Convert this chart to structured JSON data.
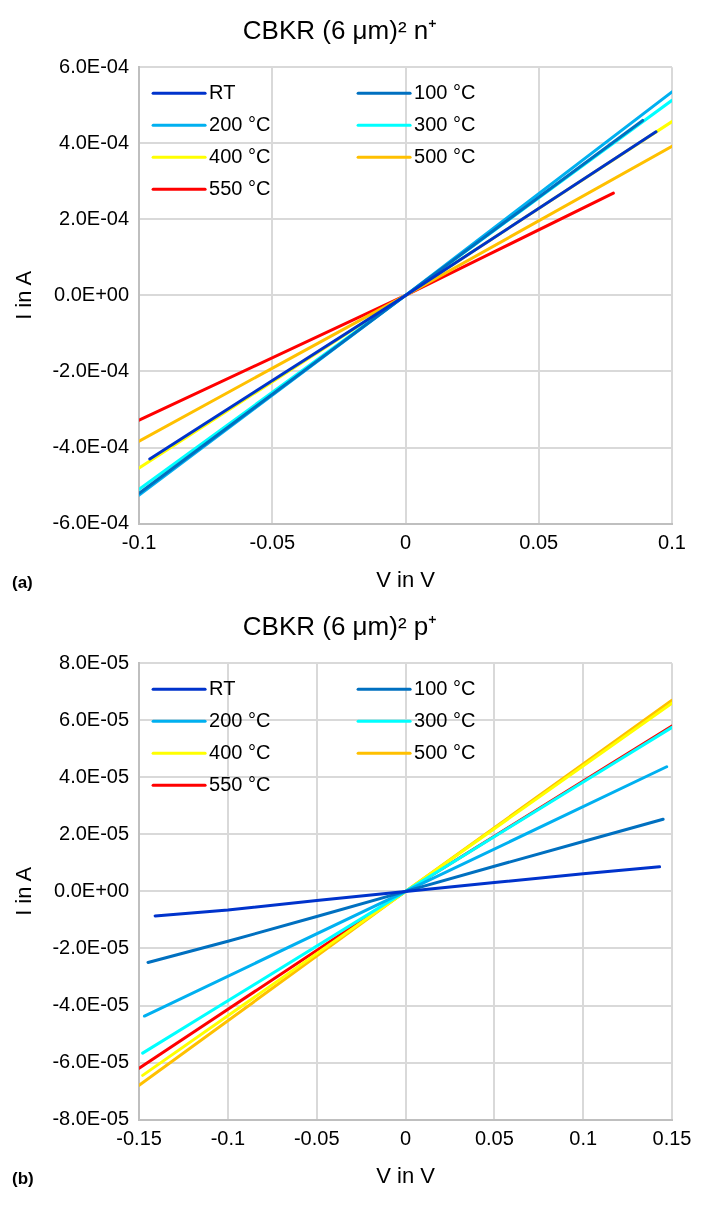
{
  "chart_data": [
    {
      "type": "line",
      "title": "CBKR (6 μm)² n⁺",
      "xlabel": "V in V",
      "ylabel": "I in A",
      "annotations": [
        "(a)"
      ],
      "xlim": [
        -0.1,
        0.1
      ],
      "xticks": [
        -0.1,
        -0.05,
        0,
        0.05,
        0.1
      ],
      "ylim": [
        -0.0006,
        0.0006
      ],
      "yticks": [
        {
          "value": -0.0006,
          "label": "-6.0E-04"
        },
        {
          "value": -0.0004,
          "label": "-4.0E-04"
        },
        {
          "value": -0.0002,
          "label": "-2.0E-04"
        },
        {
          "value": 0,
          "label": "0.0E+00"
        },
        {
          "value": 0.0002,
          "label": "2.0E-04"
        },
        {
          "value": 0.0004,
          "label": "4.0E-04"
        },
        {
          "value": 0.0006,
          "label": "6.0E-04"
        }
      ],
      "grid": true,
      "legend": "top left",
      "marker": "none",
      "line_style": "solid",
      "series": [
        {
          "name": "RT",
          "color": "#0033cc",
          "x": [
            -0.096,
            0,
            0.094
          ],
          "values": [
            -0.00043,
            0,
            0.00043
          ]
        },
        {
          "name": "100 °C",
          "color": "#0070c0",
          "x": [
            -0.1,
            0,
            0.089
          ],
          "values": [
            -0.00052,
            0,
            0.00046
          ]
        },
        {
          "name": "200 °C",
          "color": "#00b0f0",
          "x": [
            -0.1,
            0,
            0.1
          ],
          "values": [
            -0.000525,
            0,
            0.000535
          ]
        },
        {
          "name": "300 °C",
          "color": "#00ffff",
          "x": [
            -0.1,
            0,
            0.1
          ],
          "values": [
            -0.00051,
            0,
            0.000513
          ]
        },
        {
          "name": "400 °C",
          "color": "#ffff00",
          "x": [
            -0.1,
            0,
            0.1
          ],
          "values": [
            -0.000454,
            0,
            0.000457
          ]
        },
        {
          "name": "500 °C",
          "color": "#ffc000",
          "x": [
            -0.1,
            0,
            0.1
          ],
          "values": [
            -0.000383,
            0,
            0.000392
          ]
        },
        {
          "name": "550 °C",
          "color": "#ff0000",
          "x": [
            -0.1,
            0,
            0.078
          ],
          "values": [
            -0.000328,
            0,
            0.000269
          ]
        }
      ]
    },
    {
      "type": "line",
      "title": "CBKR (6 μm)² p⁺",
      "xlabel": "V in V",
      "ylabel": "I in A",
      "annotations": [
        "(b)"
      ],
      "xlim": [
        -0.15,
        0.15
      ],
      "xticks": [
        -0.15,
        -0.1,
        -0.05,
        0,
        0.05,
        0.1,
        0.15
      ],
      "ylim": [
        -8e-05,
        8e-05
      ],
      "yticks": [
        {
          "value": -8e-05,
          "label": "-8.0E-05"
        },
        {
          "value": -6e-05,
          "label": "-6.0E-05"
        },
        {
          "value": -4e-05,
          "label": "-4.0E-05"
        },
        {
          "value": -2e-05,
          "label": "-2.0E-05"
        },
        {
          "value": 0,
          "label": "0.0E+00"
        },
        {
          "value": 2e-05,
          "label": "2.0E-05"
        },
        {
          "value": 4e-05,
          "label": "4.0E-05"
        },
        {
          "value": 6e-05,
          "label": "6.0E-05"
        },
        {
          "value": 8e-05,
          "label": "8.0E-05"
        }
      ],
      "grid": true,
      "legend": "top left",
      "marker": "none",
      "line_style": "solid",
      "series": [
        {
          "name": "RT",
          "color": "#0033cc",
          "x": [
            -0.141,
            -0.1,
            -0.05,
            0,
            0.05,
            0.1,
            0.143
          ],
          "values": [
            -8.6e-06,
            -6.5e-06,
            -3.2e-06,
            0,
            3.1e-06,
            6.2e-06,
            8.6e-06
          ]
        },
        {
          "name": "100 °C",
          "color": "#0070c0",
          "x": [
            -0.145,
            -0.1,
            -0.05,
            0,
            0.05,
            0.1,
            0.145
          ],
          "values": [
            -2.49e-05,
            -1.75e-05,
            -8.8e-06,
            0,
            8.8e-06,
            1.75e-05,
            2.53e-05
          ]
        },
        {
          "name": "200 °C",
          "color": "#00b0f0",
          "x": [
            -0.147,
            0,
            0.147
          ],
          "values": [
            -4.37e-05,
            0,
            4.37e-05
          ]
        },
        {
          "name": "300 °C",
          "color": "#00ffff",
          "x": [
            -0.148,
            0,
            0.15
          ],
          "values": [
            -5.67e-05,
            0,
            5.75e-05
          ]
        },
        {
          "name": "400 °C",
          "color": "#ffff00",
          "x": [
            -0.148,
            0,
            0.15
          ],
          "values": [
            -6.45e-05,
            0,
            6.6e-05
          ]
        },
        {
          "name": "500 °C",
          "color": "#ffc000",
          "x": [
            -0.15,
            0,
            0.15
          ],
          "values": [
            -6.8e-05,
            0,
            6.7e-05
          ]
        },
        {
          "name": "550 °C",
          "color": "#ff0000",
          "x": [
            -0.15,
            0,
            0.15
          ],
          "values": [
            -6.2e-05,
            0,
            5.8e-05
          ]
        }
      ]
    }
  ]
}
